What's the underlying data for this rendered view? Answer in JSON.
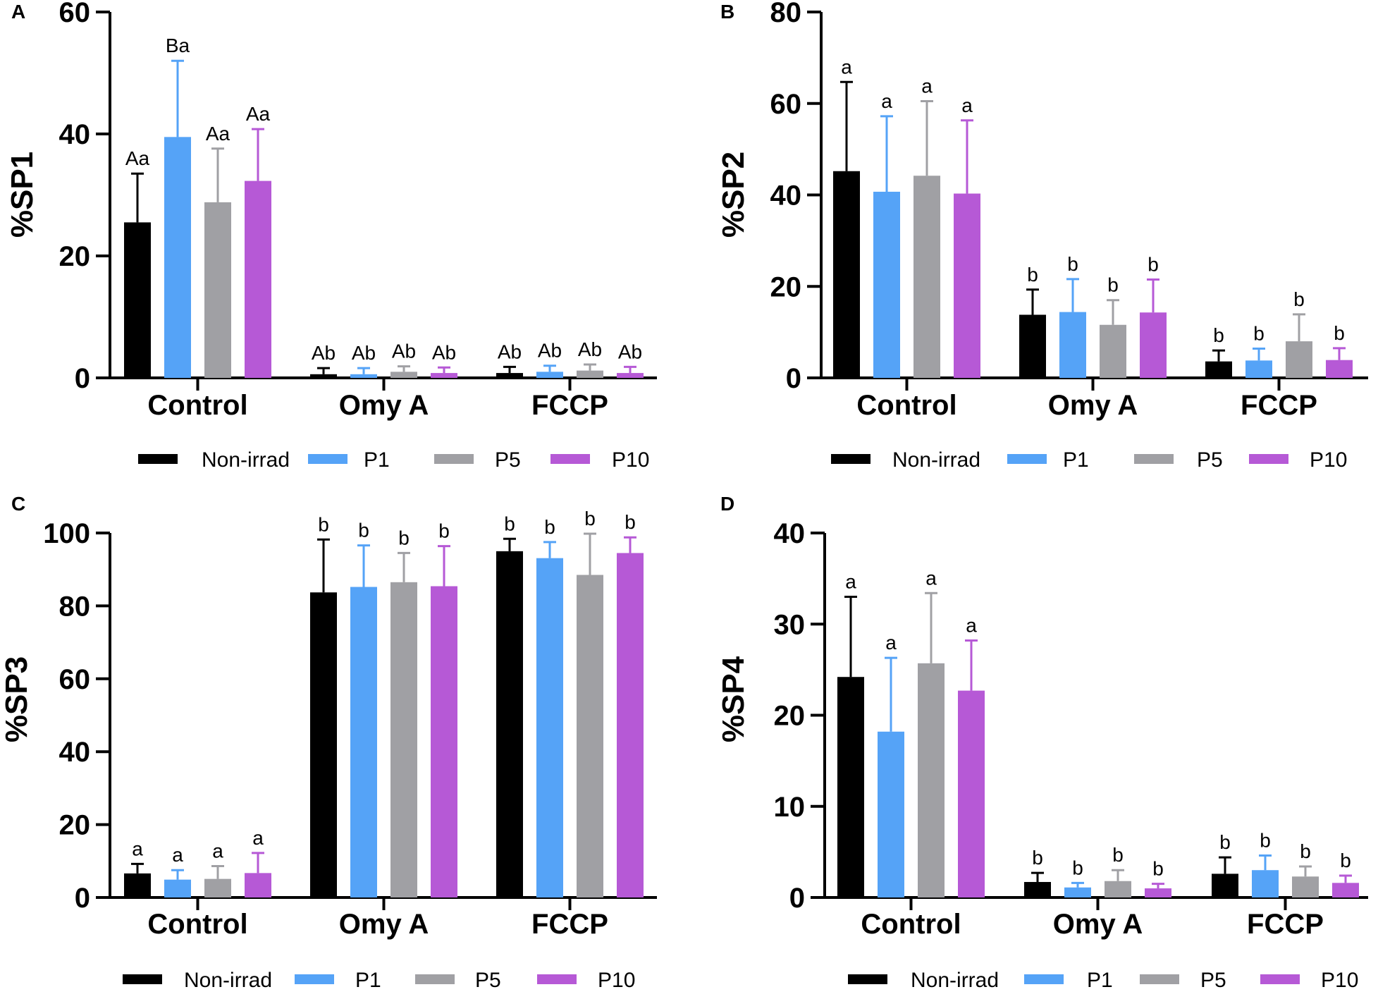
{
  "colors": {
    "Non-irrad": "#000000",
    "P1": "#55a3f7",
    "P5": "#a0a0a4",
    "P10": "#b659d6"
  },
  "chart_data": [
    {
      "panel": "A",
      "type": "bar",
      "ylabel": "%SP1",
      "ylim": [
        0,
        60
      ],
      "yticks": [
        0,
        20,
        40,
        60
      ],
      "categories": [
        "Control",
        "Omy A",
        "FCCP"
      ],
      "legend": [
        "Non-irrad",
        "P1",
        "P5",
        "P10"
      ],
      "series": [
        {
          "name": "Non-irrad",
          "values": [
            25.5,
            0.6,
            0.8
          ],
          "errors": [
            8.0,
            1.0,
            1.0
          ],
          "labels": [
            "Aa",
            "Ab",
            "Ab"
          ]
        },
        {
          "name": "P1",
          "values": [
            39.5,
            0.6,
            1.0
          ],
          "errors": [
            12.5,
            1.0,
            1.0
          ],
          "labels": [
            "Ba",
            "Ab",
            "Ab"
          ]
        },
        {
          "name": "P5",
          "values": [
            28.8,
            1.0,
            1.2
          ],
          "errors": [
            8.8,
            0.9,
            1.0
          ],
          "labels": [
            "Aa",
            "Ab",
            "Ab"
          ]
        },
        {
          "name": "P10",
          "values": [
            32.3,
            0.8,
            0.8
          ],
          "errors": [
            8.5,
            0.9,
            1.0
          ],
          "labels": [
            "Aa",
            "Ab",
            "Ab"
          ]
        }
      ]
    },
    {
      "panel": "B",
      "type": "bar",
      "ylabel": "%SP2",
      "ylim": [
        0,
        80
      ],
      "yticks": [
        0,
        20,
        40,
        60,
        80
      ],
      "categories": [
        "Control",
        "Omy A",
        "FCCP"
      ],
      "legend": [
        "Non-irrad",
        "P1",
        "P5",
        "P10"
      ],
      "series": [
        {
          "name": "Non-irrad",
          "values": [
            45.2,
            13.8,
            3.6
          ],
          "errors": [
            19.5,
            5.5,
            2.4
          ],
          "labels": [
            "a",
            "b",
            "b"
          ]
        },
        {
          "name": "P1",
          "values": [
            40.7,
            14.4,
            3.8
          ],
          "errors": [
            16.5,
            7.2,
            2.6
          ],
          "labels": [
            "a",
            "b",
            "b"
          ]
        },
        {
          "name": "P5",
          "values": [
            44.2,
            11.6,
            8.0
          ],
          "errors": [
            16.3,
            5.4,
            5.9
          ],
          "labels": [
            "a",
            "b",
            "b"
          ]
        },
        {
          "name": "P10",
          "values": [
            40.3,
            14.3,
            3.9
          ],
          "errors": [
            16.0,
            7.2,
            2.6
          ],
          "labels": [
            "a",
            "b",
            "b"
          ]
        }
      ]
    },
    {
      "panel": "C",
      "type": "bar",
      "ylabel": "%SP3",
      "ylim": [
        0,
        100
      ],
      "yticks": [
        0,
        20,
        40,
        60,
        80,
        100
      ],
      "categories": [
        "Control",
        "Omy A",
        "FCCP"
      ],
      "legend": [
        "Non-irrad",
        "P1",
        "P5",
        "P10"
      ],
      "series": [
        {
          "name": "Non-irrad",
          "values": [
            6.6,
            83.7,
            95.0
          ],
          "errors": [
            2.6,
            14.5,
            3.4
          ],
          "labels": [
            "a",
            "b",
            "b"
          ]
        },
        {
          "name": "P1",
          "values": [
            4.9,
            85.2,
            93.1
          ],
          "errors": [
            2.6,
            11.4,
            4.4
          ],
          "labels": [
            "a",
            "b",
            "b"
          ]
        },
        {
          "name": "P5",
          "values": [
            5.1,
            86.5,
            88.5
          ],
          "errors": [
            3.5,
            8.0,
            11.3
          ],
          "labels": [
            "a",
            "b",
            "b"
          ]
        },
        {
          "name": "P10",
          "values": [
            6.7,
            85.4,
            94.5
          ],
          "errors": [
            5.5,
            11.0,
            4.3
          ],
          "labels": [
            "a",
            "b",
            "b"
          ]
        }
      ]
    },
    {
      "panel": "D",
      "type": "bar",
      "ylabel": "%SP4",
      "ylim": [
        0,
        40
      ],
      "yticks": [
        0,
        10,
        20,
        30,
        40
      ],
      "categories": [
        "Control",
        "Omy A",
        "FCCP"
      ],
      "legend": [
        "Non-irrad",
        "P1",
        "P5",
        "P10"
      ],
      "series": [
        {
          "name": "Non-irrad",
          "values": [
            24.2,
            1.7,
            2.6
          ],
          "errors": [
            8.8,
            1.0,
            1.8
          ],
          "labels": [
            "a",
            "b",
            "b"
          ]
        },
        {
          "name": "P1",
          "values": [
            18.2,
            1.1,
            3.0
          ],
          "errors": [
            8.1,
            0.5,
            1.6
          ],
          "labels": [
            "a",
            "b",
            "b"
          ]
        },
        {
          "name": "P5",
          "values": [
            25.7,
            1.8,
            2.3
          ],
          "errors": [
            7.7,
            1.2,
            1.1
          ],
          "labels": [
            "a",
            "b",
            "b"
          ]
        },
        {
          "name": "P10",
          "values": [
            22.7,
            1.0,
            1.6
          ],
          "errors": [
            5.5,
            0.5,
            0.8
          ],
          "labels": [
            "a",
            "b",
            "b"
          ]
        }
      ]
    }
  ]
}
